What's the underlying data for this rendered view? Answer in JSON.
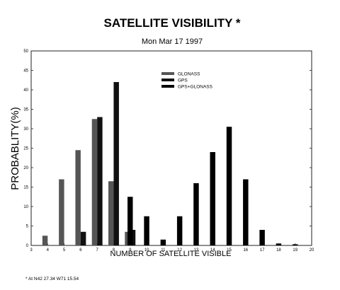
{
  "chart_data": {
    "type": "bar",
    "title": "SATELLITE VISIBILITY *",
    "subtitle": "Mon Mar 17 1997",
    "xlabel": "NUMBER OF SATELLITE VISIBLE",
    "ylabel": "PROBABLITY(%)",
    "footnote": "* At N42 27.34 W71 15.54",
    "xlim": [
      3,
      20
    ],
    "ylim": [
      0,
      50
    ],
    "x_ticks": [
      3,
      4,
      5,
      6,
      7,
      8,
      9,
      10,
      11,
      12,
      13,
      14,
      15,
      16,
      17,
      18,
      19,
      20
    ],
    "y_ticks": [
      0,
      5,
      10,
      15,
      20,
      25,
      30,
      35,
      40,
      45,
      50
    ],
    "grid": false,
    "legend_position": "top-center",
    "series": [
      {
        "name": "GLONASS",
        "color": "#555555",
        "x": [
          4,
          5,
          6,
          7,
          8,
          9
        ],
        "values": [
          2.5,
          17,
          24.5,
          32.5,
          16.5,
          3.5
        ]
      },
      {
        "name": "GPS",
        "color": "#111111",
        "x": [
          6,
          7,
          8,
          9
        ],
        "values": [
          3.5,
          33,
          42,
          4
        ]
      },
      {
        "name": "GPS+GLONASS",
        "color": "#000000",
        "x": [
          9,
          10,
          11,
          12,
          13,
          14,
          15,
          16,
          17,
          18,
          19
        ],
        "values": [
          12.5,
          7.5,
          1.5,
          7.5,
          16,
          24,
          30.5,
          17,
          4,
          0.5,
          0.3
        ]
      }
    ]
  }
}
